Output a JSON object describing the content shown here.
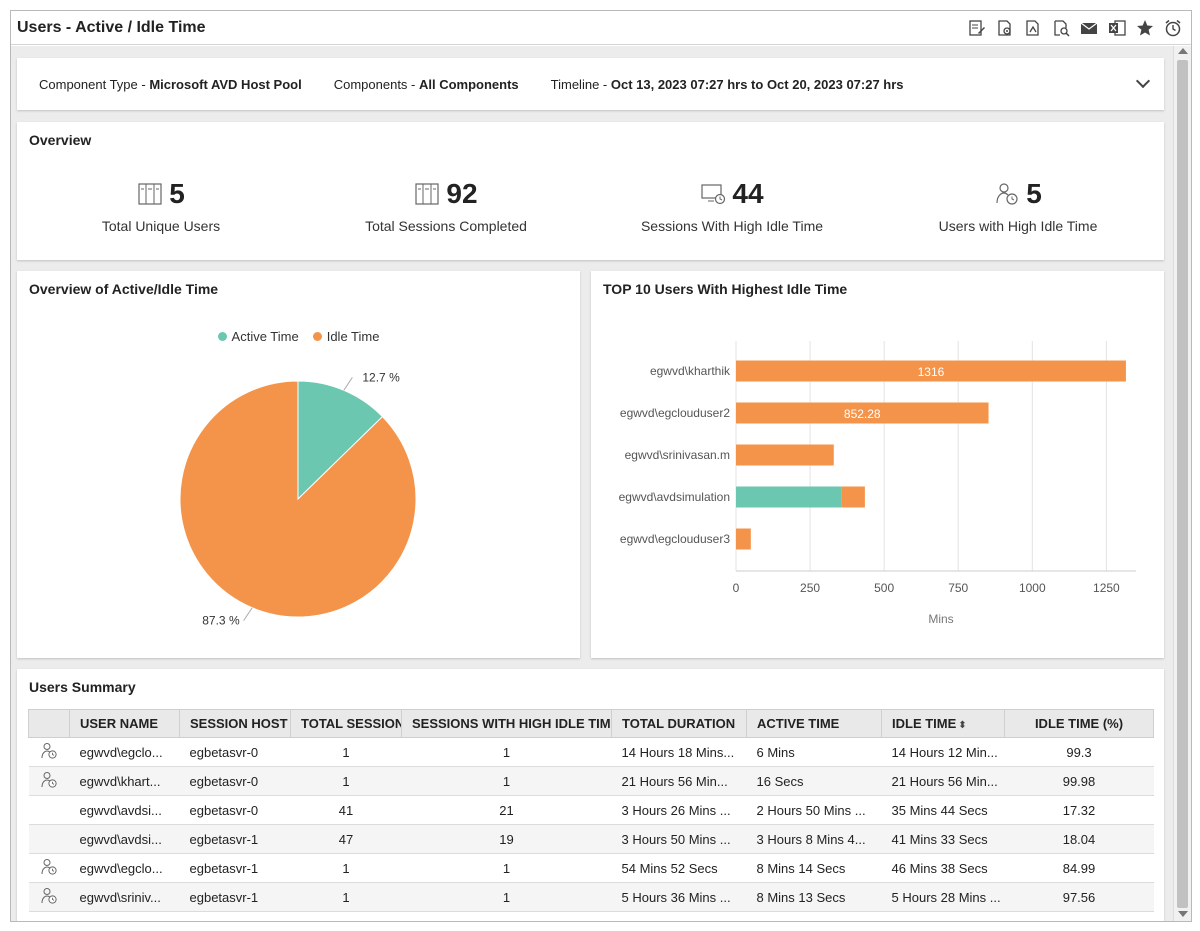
{
  "window": {
    "title": "Users - Active / Idle Time",
    "toolbar_icons": [
      "edit-report-icon",
      "settings-export-icon",
      "pdf-export-icon",
      "search-report-icon",
      "email-icon",
      "excel-icon",
      "favorite-star-icon",
      "alarm-clock-icon"
    ]
  },
  "filters": {
    "component_type_label": "Component Type - ",
    "component_type_value": "Microsoft AVD Host Pool",
    "components_label": "Components - ",
    "components_value": "All Components",
    "timeline_label": "Timeline - ",
    "timeline_value": "Oct 13, 2023 07:27 hrs to Oct 20, 2023 07:27 hrs"
  },
  "overview": {
    "title": "Overview",
    "kpis": [
      {
        "value": "5",
        "label": "Total Unique Users",
        "icon": "server-rack-icon"
      },
      {
        "value": "92",
        "label": "Total Sessions Completed",
        "icon": "server-rack-icon"
      },
      {
        "value": "44",
        "label": "Sessions With High Idle Time",
        "icon": "monitor-clock-icon"
      },
      {
        "value": "5",
        "label": "Users with High Idle Time",
        "icon": "user-clock-icon"
      }
    ]
  },
  "pie_panel": {
    "title": "Overview of Active/Idle Time"
  },
  "bar_panel": {
    "title": "TOP 10 Users With Highest Idle Time"
  },
  "chart_data": [
    {
      "type": "pie",
      "title": "Overview of Active/Idle Time",
      "legend": [
        "Active Time",
        "Idle Time"
      ],
      "legend_position": "top",
      "slices": [
        {
          "name": "Active Time",
          "value": 12.7,
          "label": "12.7 %",
          "color": "#6cc7b0"
        },
        {
          "name": "Idle Time",
          "value": 87.3,
          "label": "87.3 %",
          "color": "#f4944a"
        }
      ]
    },
    {
      "type": "bar",
      "orientation": "horizontal",
      "stacked": true,
      "title": "TOP 10 Users With Highest Idle Time",
      "categories": [
        "egwvd\\kharthik",
        "egwvd\\egclouduser2",
        "egwvd\\srinivasan.m",
        "egwvd\\avdsimulation",
        "egwvd\\egclouduser3"
      ],
      "series": [
        {
          "color": "#6cc7b0",
          "values": [
            0,
            0,
            0,
            355,
            0
          ]
        },
        {
          "color": "#f4944a",
          "values": [
            1316,
            852.28,
            330,
            80,
            50
          ]
        }
      ],
      "data_labels": [
        "1316",
        "852.28",
        "",
        "",
        ""
      ],
      "xlabel": "Mins",
      "xticks": [
        "0",
        "250",
        "500",
        "750",
        "1000",
        "1250"
      ],
      "xlim": [
        0,
        1350
      ],
      "grid": true
    }
  ],
  "summary": {
    "title": "Users Summary",
    "columns": [
      "",
      "USER NAME",
      "SESSION HOST",
      "TOTAL SESSIONS",
      "SESSIONS WITH HIGH IDLE TIME",
      "TOTAL DURATION",
      "ACTIVE TIME",
      "IDLE TIME",
      "IDLE TIME (%)"
    ],
    "rows": [
      {
        "icon": "user-clock-icon",
        "user": "egwvd\\egclo...",
        "host": "egbetasvr-0",
        "sessions": "1",
        "high_idle": "1",
        "duration": "14 Hours 18 Mins...",
        "active": "6 Mins",
        "idle": "14 Hours 12 Min...",
        "idle_pct": "99.3"
      },
      {
        "icon": "user-clock-icon",
        "user": "egwvd\\khart...",
        "host": "egbetasvr-0",
        "sessions": "1",
        "high_idle": "1",
        "duration": "21 Hours 56 Min...",
        "active": "16 Secs",
        "idle": "21 Hours 56 Min...",
        "idle_pct": "99.98"
      },
      {
        "icon": "",
        "user": "egwvd\\avdsi...",
        "host": "egbetasvr-0",
        "sessions": "41",
        "high_idle": "21",
        "duration": "3 Hours 26 Mins ...",
        "active": "2 Hours 50 Mins ...",
        "idle": "35 Mins 44 Secs",
        "idle_pct": "17.32"
      },
      {
        "icon": "",
        "user": "egwvd\\avdsi...",
        "host": "egbetasvr-1",
        "sessions": "47",
        "high_idle": "19",
        "duration": "3 Hours 50 Mins ...",
        "active": "3 Hours 8 Mins 4...",
        "idle": "41 Mins 33 Secs",
        "idle_pct": "18.04"
      },
      {
        "icon": "user-clock-icon",
        "user": "egwvd\\egclo...",
        "host": "egbetasvr-1",
        "sessions": "1",
        "high_idle": "1",
        "duration": "54 Mins 52 Secs",
        "active": "8 Mins 14 Secs",
        "idle": "46 Mins 38 Secs",
        "idle_pct": "84.99"
      },
      {
        "icon": "user-clock-icon",
        "user": "egwvd\\sriniv...",
        "host": "egbetasvr-1",
        "sessions": "1",
        "high_idle": "1",
        "duration": "5 Hours 36 Mins ...",
        "active": "8 Mins 13 Secs",
        "idle": "5 Hours 28 Mins ...",
        "idle_pct": "97.56"
      }
    ]
  }
}
